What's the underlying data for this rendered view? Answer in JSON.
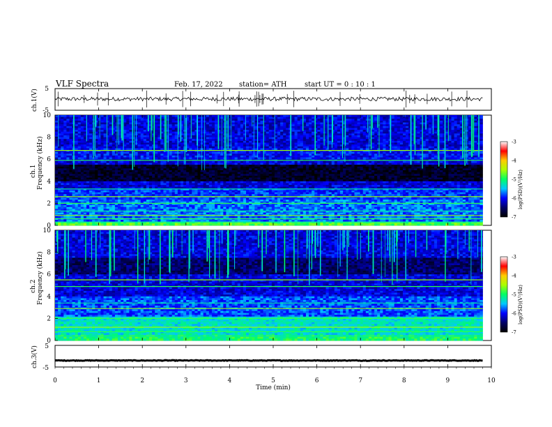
{
  "header": {
    "title": "VLF  Spectra",
    "date": "Feb. 17, 2022",
    "station": "station= ATH",
    "start_ut": "start  UT  =    0  : 10 : 1"
  },
  "chart_data": [
    {
      "type": "line",
      "name": "ch1_waveform",
      "ylabel": "ch.1(V)",
      "ylim": [
        -5,
        5
      ],
      "yticks": [
        "5",
        "-5"
      ],
      "xlim": [
        0,
        10
      ],
      "x_end": 9.8,
      "level": 0.2,
      "noise": 0.9
    },
    {
      "type": "heatmap",
      "name": "ch1_spectrogram",
      "ylabel_top": "ch.1",
      "ylabel": "Frequency  (kHz)",
      "ylim": [
        0,
        10
      ],
      "yticks": [
        "0",
        "2",
        "4",
        "6",
        "8",
        "10"
      ],
      "xlim": [
        0,
        10
      ],
      "x_end": 9.8,
      "colorbar": {
        "label": "log(PSD)(V²/Hz)",
        "range": [
          -7,
          -3
        ],
        "ticks": [
          "-3",
          "-4",
          "-5",
          "-6",
          "-7"
        ],
        "colors": [
          "#000000",
          "#000066",
          "#0000ff",
          "#00c8ff",
          "#00ff66",
          "#aaff00",
          "#ffcc00",
          "#ff0000",
          "#ffffff"
        ]
      }
    },
    {
      "type": "heatmap",
      "name": "ch2_spectrogram",
      "ylabel_top": "ch.2",
      "ylabel": "Frequency  (kHz)",
      "ylim": [
        0,
        10
      ],
      "yticks": [
        "0",
        "2",
        "4",
        "6",
        "8",
        "10"
      ],
      "xlim": [
        0,
        10
      ],
      "x_end": 9.8,
      "colorbar": {
        "label": "log(PSD)(V²/Hz)",
        "range": [
          -7,
          -3
        ],
        "ticks": [
          "-3",
          "-4",
          "-5",
          "-6",
          "-7"
        ],
        "colors": [
          "#000000",
          "#000066",
          "#0000ff",
          "#00c8ff",
          "#00ff66",
          "#aaff00",
          "#ffcc00",
          "#ff0000",
          "#ffffff"
        ]
      }
    },
    {
      "type": "line",
      "name": "ch3_waveform",
      "ylabel": "ch.3(V)",
      "ylim": [
        -5,
        5
      ],
      "yticks": [
        "5",
        "-5"
      ],
      "xlim": [
        0,
        10
      ],
      "x_end": 9.8,
      "level": -2,
      "noise": 0.15
    }
  ],
  "xaxis": {
    "label": "Time  (min)",
    "ticks": [
      "0",
      "1",
      "2",
      "3",
      "4",
      "5",
      "6",
      "7",
      "8",
      "9",
      "10"
    ]
  }
}
